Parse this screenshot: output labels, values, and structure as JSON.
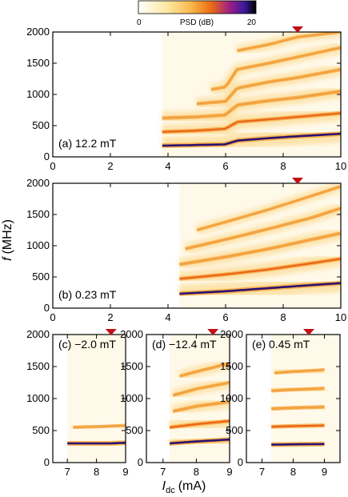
{
  "colorbar": {
    "label": "PSD (dB)",
    "min_label": "0",
    "max_label": "20",
    "range": [
      0,
      20
    ]
  },
  "ylabel_main": "f",
  "ylabel_unit": "(MHz)",
  "xlabel_main": "I",
  "xlabel_sub": "dc",
  "xlabel_unit": "(mA)",
  "chart_data": [
    {
      "type": "heatmap",
      "panel": "(a)",
      "field_label": "12.2 mT",
      "xlim": [
        0,
        10
      ],
      "ylim": [
        0,
        2000
      ],
      "xticks": [
        "0",
        "2",
        "4",
        "6",
        "8",
        "10"
      ],
      "yticks": [
        "0",
        "500",
        "1000",
        "1500",
        "2000"
      ],
      "marker_x": 8.5,
      "onset_x": 3.8,
      "modes": [
        {
          "x": [
            3.8,
            5.0,
            6.0,
            6.4,
            7.5,
            8.5,
            10.0
          ],
          "y": [
            180,
            190,
            200,
            260,
            300,
            330,
            370
          ],
          "w": 1.0
        },
        {
          "x": [
            3.8,
            5.0,
            6.0,
            6.4,
            7.5,
            8.5,
            10.0
          ],
          "y": [
            400,
            420,
            450,
            560,
            600,
            640,
            700
          ],
          "w": 0.7
        },
        {
          "x": [
            3.8,
            5.0,
            6.0,
            6.4,
            7.5,
            8.5,
            10.0
          ],
          "y": [
            620,
            640,
            670,
            830,
            900,
            950,
            1050
          ],
          "w": 0.55
        },
        {
          "x": [
            5.0,
            6.0,
            6.4,
            7.5,
            8.5,
            10.0
          ],
          "y": [
            850,
            890,
            1100,
            1200,
            1270,
            1400
          ],
          "w": 0.45
        },
        {
          "x": [
            5.5,
            6.0,
            6.4,
            7.5,
            8.5,
            10.0
          ],
          "y": [
            1080,
            1120,
            1400,
            1500,
            1600,
            1750
          ],
          "w": 0.4
        },
        {
          "x": [
            6.4,
            7.5,
            8.5,
            10.0
          ],
          "y": [
            1700,
            1800,
            1920,
            2000
          ],
          "w": 0.35
        }
      ]
    },
    {
      "type": "heatmap",
      "panel": "(b)",
      "field_label": "0.23 mT",
      "xlim": [
        0,
        10
      ],
      "ylim": [
        0,
        2000
      ],
      "xticks": [
        "0",
        "2",
        "4",
        "6",
        "8",
        "10"
      ],
      "yticks": [
        "0",
        "500",
        "1000",
        "1500",
        "2000"
      ],
      "marker_x": 8.5,
      "onset_x": 4.4,
      "modes": [
        {
          "x": [
            4.4,
            6.0,
            7.5,
            9.0,
            10.0
          ],
          "y": [
            230,
            270,
            320,
            370,
            400
          ],
          "w": 1.0
        },
        {
          "x": [
            4.4,
            6.0,
            7.5,
            9.0,
            10.0
          ],
          "y": [
            470,
            540,
            620,
            720,
            790
          ],
          "w": 0.7
        },
        {
          "x": [
            4.4,
            6.0,
            7.5,
            9.0,
            10.0
          ],
          "y": [
            700,
            820,
            950,
            1100,
            1200
          ],
          "w": 0.5
        },
        {
          "x": [
            4.6,
            6.0,
            7.5,
            9.0,
            10.0
          ],
          "y": [
            950,
            1100,
            1270,
            1450,
            1600
          ],
          "w": 0.4
        },
        {
          "x": [
            5.0,
            6.0,
            7.5,
            9.0,
            10.0
          ],
          "y": [
            1250,
            1380,
            1580,
            1800,
            1950
          ],
          "w": 0.3
        }
      ]
    },
    {
      "type": "heatmap",
      "panel": "(c)",
      "field_label": "−2.0 mT",
      "xlim": [
        6.5,
        9.0
      ],
      "ylim": [
        0,
        2000
      ],
      "xticks": [
        "7",
        "8",
        "9"
      ],
      "yticks": [
        "0",
        "500",
        "1000",
        "1500",
        "2000"
      ],
      "marker_x": 8.5,
      "onset_x": 7.0,
      "modes": [
        {
          "x": [
            7.0,
            7.5,
            8.0,
            8.5,
            9.0
          ],
          "y": [
            300,
            300,
            300,
            300,
            310
          ],
          "w": 1.0
        },
        {
          "x": [
            7.2,
            8.0,
            9.0
          ],
          "y": [
            550,
            560,
            580
          ],
          "w": 0.35
        }
      ]
    },
    {
      "type": "heatmap",
      "panel": "(d)",
      "field_label": "−12.4 mT",
      "xlim": [
        6.5,
        9.0
      ],
      "ylim": [
        0,
        2000
      ],
      "xticks": [
        "7",
        "8",
        "9"
      ],
      "yticks": [
        "0",
        "500",
        "1000",
        "1500",
        "2000"
      ],
      "marker_x": 8.5,
      "onset_x": 7.2,
      "modes": [
        {
          "x": [
            7.2,
            8.0,
            9.0
          ],
          "y": [
            300,
            330,
            360
          ],
          "w": 1.0
        },
        {
          "x": [
            7.2,
            8.0,
            9.0
          ],
          "y": [
            550,
            600,
            650
          ],
          "w": 0.7
        },
        {
          "x": [
            7.3,
            8.0,
            9.0
          ],
          "y": [
            800,
            880,
            950
          ],
          "w": 0.5
        },
        {
          "x": [
            7.3,
            8.0,
            9.0
          ],
          "y": [
            1050,
            1150,
            1250
          ],
          "w": 0.4
        },
        {
          "x": [
            7.5,
            8.0,
            9.0
          ],
          "y": [
            1350,
            1420,
            1550
          ],
          "w": 0.35
        }
      ]
    },
    {
      "type": "heatmap",
      "panel": "(e)",
      "field_label": "0.45 mT",
      "xlim": [
        6.5,
        9.5
      ],
      "ylim": [
        0,
        2000
      ],
      "xticks": [
        "7",
        "8",
        "9"
      ],
      "yticks": [
        "0",
        "500",
        "1000",
        "1500",
        "2000"
      ],
      "marker_x": 8.5,
      "onset_x": 7.3,
      "modes": [
        {
          "x": [
            7.3,
            8.0,
            9.0
          ],
          "y": [
            280,
            285,
            290
          ],
          "w": 1.0
        },
        {
          "x": [
            7.3,
            8.0,
            9.0
          ],
          "y": [
            560,
            570,
            580
          ],
          "w": 0.7
        },
        {
          "x": [
            7.3,
            8.0,
            9.0
          ],
          "y": [
            840,
            855,
            870
          ],
          "w": 0.55
        },
        {
          "x": [
            7.3,
            8.0,
            9.0
          ],
          "y": [
            1120,
            1140,
            1160
          ],
          "w": 0.45
        },
        {
          "x": [
            7.4,
            8.0,
            9.0
          ],
          "y": [
            1400,
            1420,
            1450
          ],
          "w": 0.35
        }
      ]
    }
  ]
}
